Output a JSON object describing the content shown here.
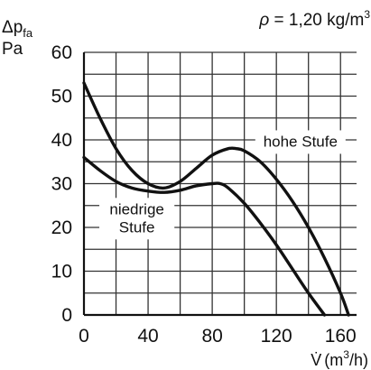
{
  "chart_data": {
    "type": "line",
    "title": "",
    "ylabel_symbol": "Δp",
    "ylabel_subscript": "fa",
    "ylabel_unit": "Pa",
    "xlabel_symbol": "V̇",
    "xlabel_unit_open": "(m",
    "xlabel_unit_exp": "3",
    "xlabel_unit_close": "/h)",
    "density_note_symbol": "ρ",
    "density_note_rest": " = 1,20 kg/m",
    "density_note_exp": "3",
    "xlim": [
      0,
      170
    ],
    "ylim": [
      0,
      60
    ],
    "x_minor_step": 20,
    "y_minor_step": 5,
    "x_ticks": [
      {
        "value": 0,
        "label": "0"
      },
      {
        "value": 40,
        "label": "40"
      },
      {
        "value": 80,
        "label": "80"
      },
      {
        "value": 120,
        "label": "120"
      },
      {
        "value": 160,
        "label": "160"
      }
    ],
    "y_ticks": [
      {
        "value": 0,
        "label": "0"
      },
      {
        "value": 10,
        "label": "10"
      },
      {
        "value": 20,
        "label": "20"
      },
      {
        "value": 30,
        "label": "30"
      },
      {
        "value": 40,
        "label": "40"
      },
      {
        "value": 50,
        "label": "50"
      },
      {
        "value": 60,
        "label": "60"
      }
    ],
    "grid": true,
    "series": [
      {
        "name": "hohe Stufe",
        "label_lines": [
          "hohe Stufe"
        ],
        "label_anchor": {
          "x": 135,
          "y": 39.5
        },
        "x": [
          0,
          10,
          20,
          30,
          40,
          50,
          60,
          70,
          80,
          90,
          95,
          100,
          110,
          120,
          130,
          140,
          150,
          160,
          165
        ],
        "y": [
          53,
          45,
          38,
          33,
          30,
          29,
          30.5,
          33.5,
          36.5,
          38,
          38,
          37.5,
          35,
          31,
          26,
          20,
          13,
          5,
          0
        ]
      },
      {
        "name": "niedrige Stufe",
        "label_lines": [
          "niedrige",
          "Stufe"
        ],
        "label_anchor": {
          "x": 33,
          "y": 22
        },
        "x": [
          0,
          10,
          20,
          30,
          40,
          50,
          60,
          70,
          80,
          85,
          90,
          100,
          110,
          120,
          130,
          140,
          150
        ],
        "y": [
          36,
          33,
          30.5,
          29,
          28.3,
          28,
          28.5,
          29.5,
          30,
          30,
          29,
          25.5,
          21,
          16,
          10.5,
          5,
          0
        ]
      }
    ]
  }
}
